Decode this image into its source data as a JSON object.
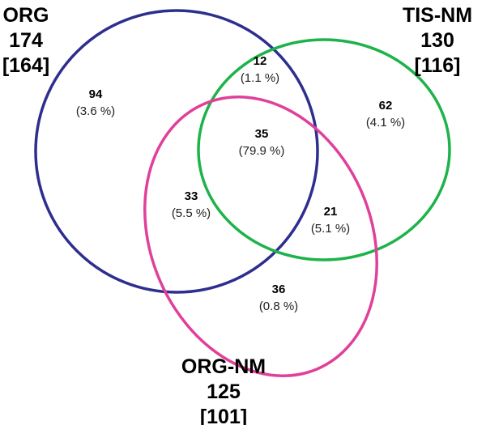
{
  "sets": [
    {
      "name": "ORG",
      "total": "174",
      "bracket": "[164]",
      "color": "#2e2e8f"
    },
    {
      "name": "TIS-NM",
      "total": "130",
      "bracket": "[116]",
      "color": "#1db34a"
    },
    {
      "name": "ORG-NM",
      "total": "125",
      "bracket": "[101]",
      "color": "#e0409a"
    }
  ],
  "regions": [
    {
      "id": "org-only",
      "count": "94",
      "percent": "(3.6 %)"
    },
    {
      "id": "org-tis",
      "count": "12",
      "percent": "(1.1 %)"
    },
    {
      "id": "tis-only",
      "count": "62",
      "percent": "(4.1 %)"
    },
    {
      "id": "all-three",
      "count": "35",
      "percent": "(79.9 %)"
    },
    {
      "id": "org-orgnm",
      "count": "33",
      "percent": "(5.5 %)"
    },
    {
      "id": "tis-orgnm",
      "count": "21",
      "percent": "(5.1 %)"
    },
    {
      "id": "orgnm-only",
      "count": "36",
      "percent": "(0.8 %)"
    }
  ]
}
